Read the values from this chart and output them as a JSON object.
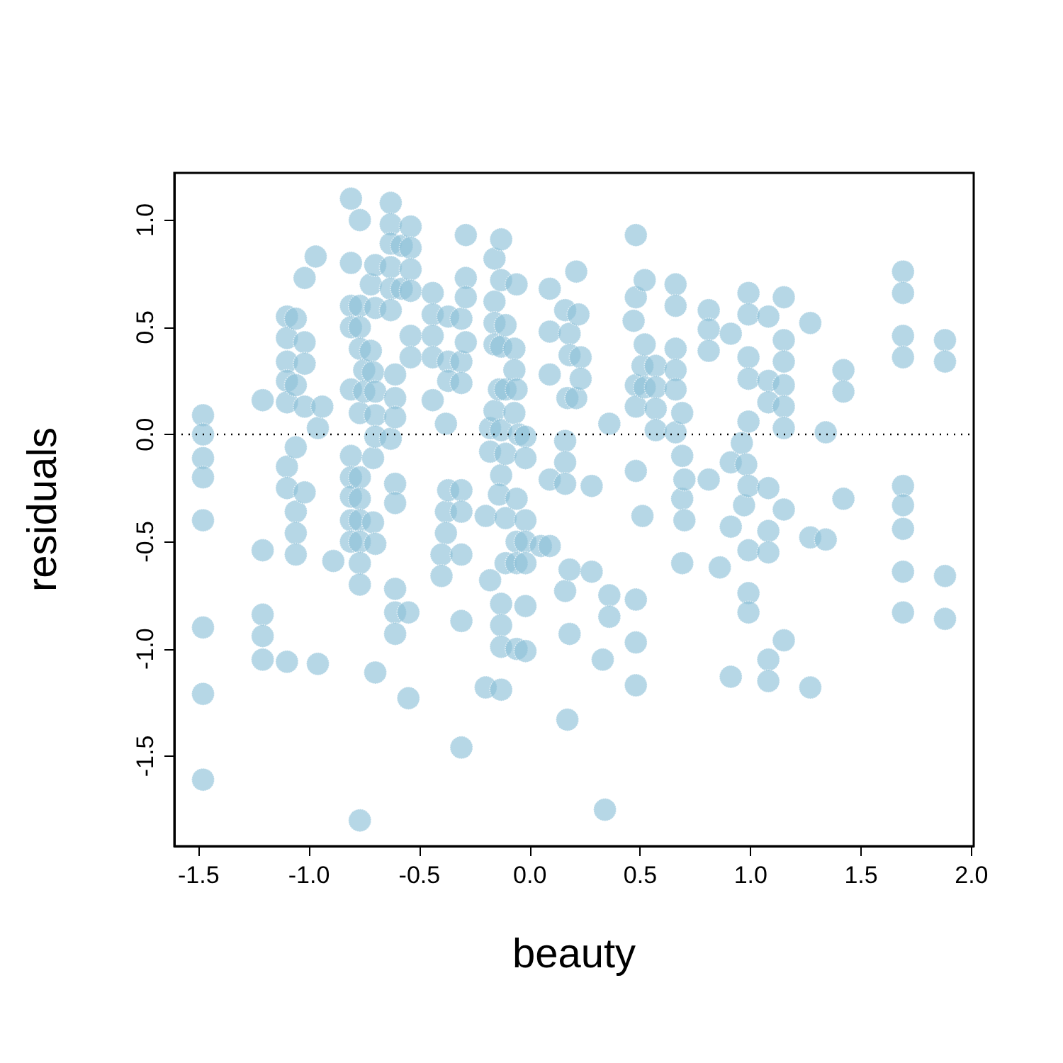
{
  "chart_data": {
    "type": "scatter",
    "xlabel": "beauty",
    "ylabel": "residuals",
    "xlim": [
      -1.61,
      2.01
    ],
    "ylim": [
      -1.92,
      1.22
    ],
    "xticks": [
      {
        "value": -1.5,
        "label": "-1.5"
      },
      {
        "value": -1,
        "label": "-1.0"
      },
      {
        "value": -0.5,
        "label": "-0.5"
      },
      {
        "value": 0,
        "label": "0.0"
      },
      {
        "value": 0.5,
        "label": "0.5"
      },
      {
        "value": 1,
        "label": "1.0"
      },
      {
        "value": 1.5,
        "label": "1.5"
      },
      {
        "value": 2,
        "label": "2.0"
      }
    ],
    "yticks": [
      {
        "value": -1.5,
        "label": "-1.5"
      },
      {
        "value": -1,
        "label": "-1.0"
      },
      {
        "value": -0.5,
        "label": "-0.5"
      },
      {
        "value": 0,
        "label": "0.0"
      },
      {
        "value": 0.5,
        "label": "0.5"
      },
      {
        "value": 1,
        "label": "1.0"
      }
    ],
    "marker": "circle",
    "ref_lines": [
      {
        "axis": "y",
        "value": 0,
        "color": "#000000",
        "line_style": "dotted"
      }
    ],
    "series": [
      {
        "color": "#8fc1d8",
        "x": [
          -1.48,
          -1.48,
          -1.48,
          -1.48,
          -1.48,
          -1.48,
          -1.48,
          -1.48,
          -1.21,
          -1.21,
          -1.21,
          -1.21,
          -1.21,
          -1.1,
          -1.1,
          -1.1,
          -1.1,
          -1.1,
          -1.1,
          -1.1,
          -1.1,
          -1.06,
          -1.06,
          -1.06,
          -1.06,
          -1.06,
          -1.06,
          -1.02,
          -1.02,
          -1.02,
          -1.02,
          -1.02,
          -0.97,
          -0.96,
          -0.96,
          -0.94,
          -0.89,
          -0.81,
          -0.81,
          -0.81,
          -0.81,
          -0.81,
          -0.81,
          -0.81,
          -0.81,
          -0.81,
          -0.81,
          -0.77,
          -0.77,
          -0.77,
          -0.77,
          -0.77,
          -0.77,
          -0.77,
          -0.77,
          -0.77,
          -0.77,
          -0.77,
          -0.77,
          -0.75,
          -0.75,
          -0.72,
          -0.72,
          -0.71,
          -0.71,
          -0.71,
          -0.7,
          -0.7,
          -0.7,
          -0.7,
          -0.7,
          -0.7,
          -0.7,
          -0.63,
          -0.63,
          -0.63,
          -0.63,
          -0.63,
          -0.63,
          -0.63,
          -0.58,
          -0.58,
          -0.54,
          -0.54,
          -0.54,
          -0.54,
          -0.54,
          -0.54,
          -0.61,
          -0.61,
          -0.61,
          -0.61,
          -0.61,
          -0.61,
          -0.61,
          -0.61,
          -0.55,
          -0.55,
          -0.44,
          -0.44,
          -0.44,
          -0.44,
          -0.44,
          -0.38,
          -0.38,
          -0.38,
          -0.4,
          -0.4,
          -0.37,
          -0.37,
          -0.37,
          -0.37,
          -0.31,
          -0.31,
          -0.31,
          -0.31,
          -0.31,
          -0.31,
          -0.31,
          -0.31,
          -0.29,
          -0.29,
          -0.29,
          -0.29,
          -0.2,
          -0.2,
          -0.18,
          -0.18,
          -0.18,
          -0.16,
          -0.16,
          -0.16,
          -0.16,
          -0.16,
          -0.13,
          -0.13,
          -0.13,
          -0.13,
          -0.13,
          -0.13,
          -0.13,
          -0.13,
          -0.13,
          -0.14,
          -0.14,
          -0.11,
          -0.11,
          -0.11,
          -0.11,
          -0.11,
          -0.07,
          -0.07,
          -0.07,
          -0.06,
          -0.06,
          -0.06,
          -0.06,
          -0.06,
          -0.06,
          -0.05,
          -0.02,
          -0.02,
          -0.02,
          -0.02,
          -0.02,
          -0.02,
          -0.02,
          0.05,
          0.09,
          0.09,
          0.09,
          0.09,
          0.09,
          0.16,
          0.16,
          0.16,
          0.16,
          0.16,
          0.17,
          0.17,
          0.18,
          0.18,
          0.18,
          0.18,
          0.21,
          0.21,
          0.22,
          0.23,
          0.23,
          0.28,
          0.28,
          0.33,
          0.34,
          0.36,
          0.36,
          0.36,
          0.47,
          0.48,
          0.48,
          0.48,
          0.48,
          0.48,
          0.48,
          0.48,
          0.48,
          0.51,
          0.51,
          0.52,
          0.52,
          0.52,
          0.57,
          0.57,
          0.57,
          0.57,
          0.66,
          0.66,
          0.66,
          0.66,
          0.66,
          0.66,
          0.69,
          0.69,
          0.69,
          0.69,
          0.7,
          0.7,
          0.81,
          0.81,
          0.81,
          0.81,
          0.86,
          0.91,
          0.91,
          0.91,
          0.91,
          0.96,
          0.97,
          0.98,
          0.99,
          0.99,
          0.99,
          0.99,
          0.99,
          0.99,
          0.99,
          0.99,
          0.99,
          1.08,
          1.08,
          1.08,
          1.08,
          1.08,
          1.08,
          1.08,
          1.08,
          1.15,
          1.15,
          1.15,
          1.15,
          1.15,
          1.15,
          1.15,
          1.15,
          1.27,
          1.27,
          1.27,
          1.34,
          1.34,
          1.42,
          1.42,
          1.42,
          1.69,
          1.69,
          1.69,
          1.69,
          1.69,
          1.69,
          1.69,
          1.69,
          1.69,
          1.88,
          1.88,
          1.88,
          1.88
        ],
        "values": [
          0.09,
          0,
          -0.11,
          -0.2,
          -0.4,
          -0.9,
          -1.21,
          -1.61,
          0.16,
          -0.54,
          -0.84,
          -0.94,
          -1.05,
          0.55,
          0.45,
          0.34,
          0.25,
          0.15,
          -0.15,
          -0.25,
          -1.06,
          0.54,
          0.23,
          -0.06,
          -0.36,
          -0.46,
          -0.56,
          0.73,
          0.43,
          0.33,
          0.13,
          -0.27,
          0.83,
          0.03,
          -1.07,
          0.13,
          -0.59,
          1.1,
          0.8,
          0.6,
          0.5,
          0.21,
          -0.1,
          -0.2,
          -0.29,
          -0.4,
          -0.5,
          1,
          0.6,
          0.5,
          0.4,
          0.1,
          -0.2,
          -0.3,
          -0.4,
          -0.5,
          -0.6,
          -0.7,
          -1.8,
          0.3,
          0.2,
          0.7,
          0.39,
          0.29,
          -0.11,
          -0.41,
          0.79,
          0.59,
          0.2,
          0.09,
          -0.01,
          -0.51,
          -1.11,
          1.08,
          0.98,
          0.89,
          0.78,
          0.68,
          0.58,
          -0.02,
          0.88,
          0.68,
          0.97,
          0.87,
          0.77,
          0.67,
          0.46,
          0.36,
          0.28,
          0.17,
          0.08,
          -0.23,
          -0.32,
          -0.72,
          -0.83,
          -0.93,
          -0.83,
          -1.23,
          0.66,
          0.56,
          0.46,
          0.36,
          0.16,
          0.05,
          -0.36,
          -0.46,
          -0.56,
          -0.66,
          0.55,
          0.34,
          0.25,
          -0.26,
          0.54,
          0.34,
          0.24,
          -0.26,
          -0.36,
          -0.56,
          -0.87,
          -1.46,
          0.93,
          0.73,
          0.64,
          0.43,
          -0.38,
          -1.18,
          0.03,
          -0.68,
          -0.08,
          0.82,
          0.62,
          0.52,
          0.42,
          0.11,
          0.91,
          0.72,
          0.41,
          0.02,
          -0.19,
          -0.79,
          -0.89,
          -0.99,
          -1.19,
          0.21,
          -0.28,
          0.51,
          0.21,
          -0.09,
          -0.39,
          -0.6,
          0.4,
          0.3,
          0.1,
          0.7,
          0.21,
          -0.3,
          -0.5,
          -0.6,
          -1,
          0,
          -0.01,
          -0.11,
          -0.4,
          -0.5,
          -0.6,
          -0.8,
          -1.01,
          -0.52,
          0.68,
          0.48,
          0.28,
          -0.21,
          -0.52,
          0.58,
          -0.03,
          -0.13,
          -0.23,
          -0.73,
          0.17,
          -1.33,
          0.47,
          0.37,
          -0.93,
          -0.63,
          0.76,
          0.17,
          0.56,
          0.36,
          0.26,
          -0.24,
          -0.64,
          -1.05,
          -1.75,
          0.05,
          -0.75,
          -0.85,
          0.53,
          0.93,
          0.64,
          0.23,
          0.13,
          -0.17,
          -0.77,
          -0.97,
          -1.17,
          0.32,
          -0.38,
          0.72,
          0.42,
          0.22,
          0.32,
          0.22,
          0.12,
          0.02,
          0.7,
          0.6,
          0.4,
          0.3,
          0.21,
          0.01,
          0.1,
          -0.1,
          -0.3,
          -0.6,
          -0.21,
          -0.4,
          0.58,
          0.49,
          0.39,
          -0.21,
          -0.62,
          0.47,
          -0.13,
          -0.43,
          -1.13,
          -0.04,
          -0.33,
          -0.14,
          0.66,
          0.56,
          0.36,
          0.26,
          0.06,
          -0.24,
          -0.54,
          -0.74,
          -0.83,
          0.55,
          0.25,
          0.15,
          -0.25,
          -0.45,
          -0.55,
          -1.05,
          -1.15,
          0.64,
          0.44,
          0.34,
          0.23,
          0.13,
          0.03,
          -0.35,
          -0.96,
          0.52,
          -0.48,
          -1.18,
          0.01,
          -0.49,
          0.3,
          0.2,
          -0.3,
          0.76,
          0.66,
          0.46,
          0.36,
          -0.24,
          -0.33,
          -0.44,
          -0.64,
          -0.83,
          0.44,
          0.34,
          -0.66,
          -0.86
        ]
      }
    ]
  }
}
